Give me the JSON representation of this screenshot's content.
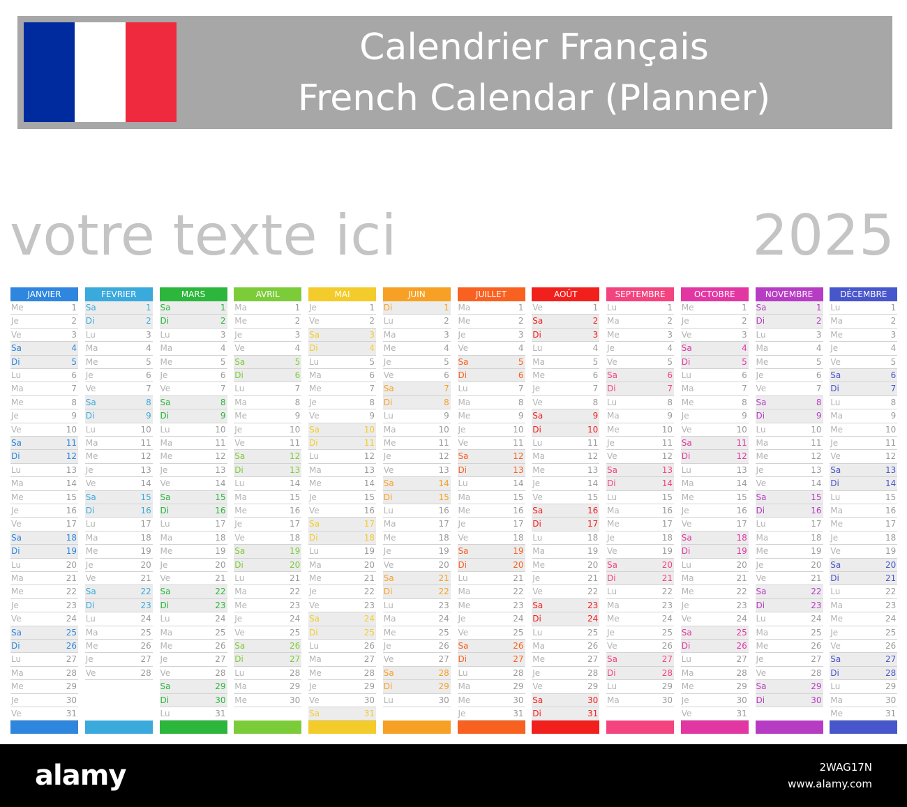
{
  "header": {
    "title_line1": "Calendrier Français",
    "title_line2": "French Calendar (Planner)",
    "flag_colors": [
      "#002b9e",
      "#ffffff",
      "#ef2a3e"
    ]
  },
  "subtitle": "votre texte ici",
  "year": "2025",
  "weekdays": [
    "Lu",
    "Ma",
    "Me",
    "Je",
    "Ve",
    "Sa",
    "Di"
  ],
  "months": [
    {
      "name": "JANVIER",
      "color": "#2e86de",
      "start": 2,
      "days": 31
    },
    {
      "name": "FEVRIER",
      "color": "#3aa9dc",
      "start": 5,
      "days": 28
    },
    {
      "name": "MARS",
      "color": "#2cb63c",
      "start": 5,
      "days": 31
    },
    {
      "name": "AVRIL",
      "color": "#7ccc3a",
      "start": 1,
      "days": 30
    },
    {
      "name": "MAI",
      "color": "#f3cc2b",
      "start": 3,
      "days": 31
    },
    {
      "name": "JUIN",
      "color": "#f6a125",
      "start": 6,
      "days": 30
    },
    {
      "name": "JUILLET",
      "color": "#f96121",
      "start": 1,
      "days": 31
    },
    {
      "name": "AOÛT",
      "color": "#f2201d",
      "start": 4,
      "days": 31
    },
    {
      "name": "SEPTEMBRE",
      "color": "#f4447f",
      "start": 0,
      "days": 30
    },
    {
      "name": "OCTOBRE",
      "color": "#e237a3",
      "start": 2,
      "days": 31
    },
    {
      "name": "NOVEMBRE",
      "color": "#b73cc4",
      "start": 5,
      "days": 30
    },
    {
      "name": "DÉCEMBRE",
      "color": "#4856cc",
      "start": 0,
      "days": 31
    }
  ],
  "footer": {
    "logo": "alamy",
    "image_id": "2WAG17N",
    "site": "www.alamy.com"
  }
}
